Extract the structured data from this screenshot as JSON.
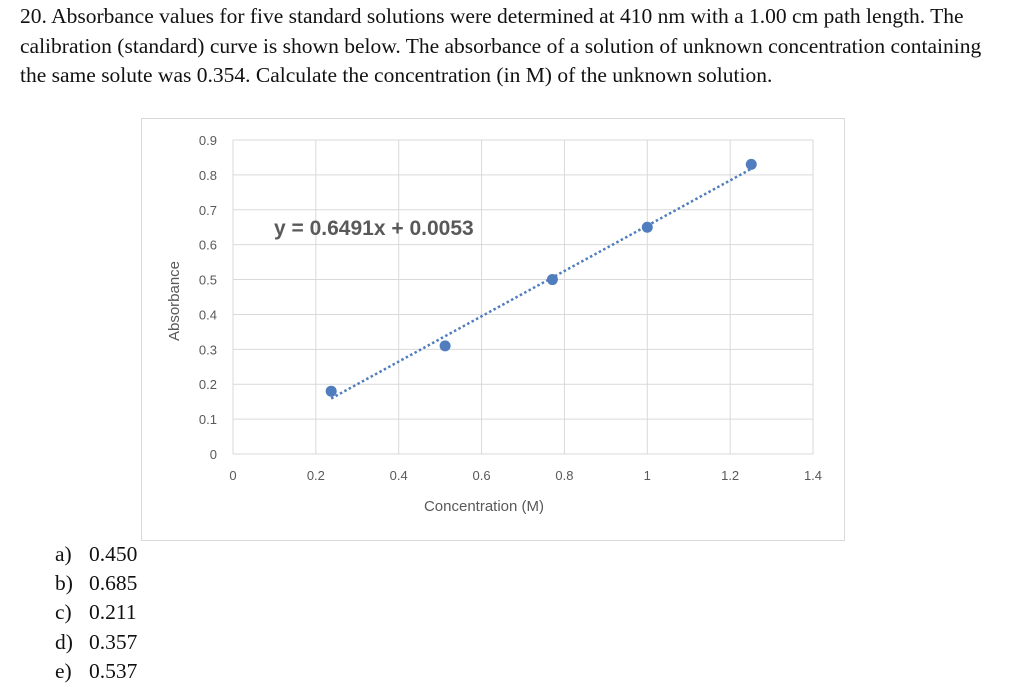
{
  "question": {
    "text": "20. Absorbance values for five standard solutions were determined at 410 nm with a 1.00 cm path length.  The calibration (standard) curve is shown below.  The absorbance of a solution of unknown concentration containing the same solute was 0.354.  Calculate the concentration (in M) of the unknown solution."
  },
  "chart_data": {
    "type": "scatter",
    "xlabel": "Concentration (M)",
    "ylabel": "Absorbance",
    "xlim": [
      0,
      1.4
    ],
    "ylim": [
      0,
      0.9
    ],
    "x_ticks": [
      "0",
      "0.2",
      "0.4",
      "0.6",
      "0.8",
      "1",
      "1.2",
      "1.4"
    ],
    "y_ticks": [
      "0",
      "0.1",
      "0.2",
      "0.3",
      "0.4",
      "0.5",
      "0.6",
      "0.7",
      "0.8",
      "0.9"
    ],
    "grid": true,
    "points": [
      {
        "x": 0.237,
        "y": 0.18
      },
      {
        "x": 0.512,
        "y": 0.31
      },
      {
        "x": 0.771,
        "y": 0.5
      },
      {
        "x": 1.0,
        "y": 0.65
      },
      {
        "x": 1.251,
        "y": 0.83
      }
    ],
    "trendline": {
      "slope": 0.6491,
      "intercept": 0.0053,
      "x_range": [
        0.237,
        1.251
      ],
      "style": "dotted"
    },
    "equation_label": "y = 0.6491x + 0.0053",
    "colors": {
      "point": "#4f7dbd",
      "trendline": "#4f7dbd",
      "grid": "#d9d9d9"
    }
  },
  "options": [
    {
      "letter": "a)",
      "value": "0.450"
    },
    {
      "letter": "b)",
      "value": "0.685"
    },
    {
      "letter": "c)",
      "value": "0.211"
    },
    {
      "letter": "d)",
      "value": "0.357"
    },
    {
      "letter": "e)",
      "value": "0.537"
    }
  ]
}
